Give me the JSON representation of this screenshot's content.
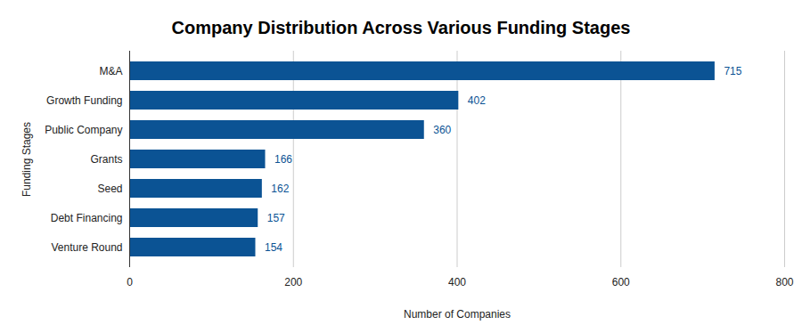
{
  "chart_data": {
    "type": "bar",
    "orientation": "horizontal",
    "title": "Company Distribution Across Various Funding Stages",
    "x_label": "Number of Companies",
    "y_label": "Funding Stages",
    "categories": [
      "M&A",
      "Growth Funding",
      "Public Company",
      "Grants",
      "Seed",
      "Debt Financing",
      "Venture Round"
    ],
    "values": [
      715,
      402,
      360,
      166,
      162,
      157,
      154
    ],
    "color": "#0b5394",
    "xlim": [
      0,
      800
    ],
    "xticks": [
      0,
      200,
      400,
      600,
      800
    ],
    "grid": true,
    "data_labels": true
  }
}
